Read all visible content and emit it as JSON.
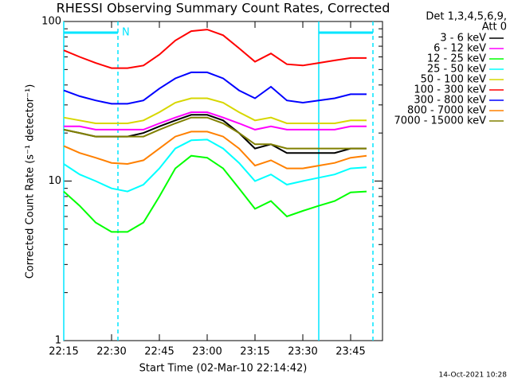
{
  "chart_data": {
    "type": "line",
    "title": "RHESSI Observing Summary Count Rates, Corrected",
    "x_label": "Start Time (02-Mar-10 22:14:42)",
    "y_label": "Corrected Count Rate (s⁻¹ detector⁻¹)",
    "legend_header": [
      "Det 1,3,4,5,6,9,",
      "Att 0"
    ],
    "footer": "14-Oct-2021 10:28",
    "log_y": true,
    "ylim": [
      1,
      100
    ],
    "yticks": [
      1,
      10,
      100
    ],
    "xlim": [
      "22:15",
      "23:55"
    ],
    "xticks": [
      "22:15",
      "22:30",
      "22:45",
      "23:00",
      "23:15",
      "23:30",
      "23:45"
    ],
    "intervals": [
      {
        "start": "22:15",
        "end": "22:32",
        "label": "N"
      },
      {
        "start": "23:35",
        "end": "23:52"
      }
    ],
    "interval_color": "#00e5ff",
    "x": [
      "22:15",
      "22:20",
      "22:25",
      "22:30",
      "22:35",
      "22:40",
      "22:45",
      "22:50",
      "22:55",
      "23:00",
      "23:05",
      "23:10",
      "23:15",
      "23:20",
      "23:25",
      "23:30",
      "23:35",
      "23:40",
      "23:45",
      "23:50"
    ],
    "series": [
      {
        "name": "3 - 6 keV",
        "color": "#000000",
        "values": [
          21,
          20,
          19,
          19,
          19,
          20,
          22,
          24,
          26,
          26,
          24,
          20,
          16,
          17,
          15,
          15,
          15,
          15,
          16,
          16
        ]
      },
      {
        "name": "6 - 12 keV",
        "color": "#ff00ff",
        "values": [
          22,
          22,
          21,
          21,
          21,
          21,
          23,
          25,
          27,
          27,
          25,
          23,
          21,
          22,
          21,
          21,
          21,
          21,
          22,
          22
        ]
      },
      {
        "name": "12 - 25 keV",
        "color": "#00ff00",
        "values": [
          8.6,
          7,
          5.5,
          4.8,
          4.8,
          5.5,
          8,
          12,
          14.4,
          14,
          12,
          9,
          6.7,
          7.5,
          6,
          6.5,
          7,
          7.5,
          8.5,
          8.6
        ]
      },
      {
        "name": "25 - 50 keV",
        "color": "#00ffff",
        "values": [
          12.8,
          11,
          10,
          9,
          8.6,
          9.5,
          12,
          16,
          18,
          18.2,
          16,
          13,
          10,
          11,
          9.5,
          10,
          10.5,
          11,
          12,
          12.2
        ]
      },
      {
        "name": "50 - 100 keV",
        "color": "#d7d700",
        "values": [
          25,
          24,
          23,
          23,
          23,
          24,
          27,
          31,
          33,
          33,
          31,
          27,
          24,
          25,
          23,
          23,
          23,
          23,
          24,
          24
        ]
      },
      {
        "name": "100 - 300 keV",
        "color": "#ff0000",
        "values": [
          66,
          60,
          55,
          51,
          51,
          53,
          62,
          76,
          87,
          89,
          82,
          68,
          56,
          63,
          54,
          53,
          55,
          57,
          59,
          59
        ]
      },
      {
        "name": "300 - 800 keV",
        "color": "#0000ff",
        "values": [
          37,
          34,
          32,
          30.5,
          30.5,
          32,
          38,
          44,
          48,
          48,
          44,
          37,
          33,
          39,
          32,
          31,
          32,
          33,
          35,
          35
        ]
      },
      {
        "name": "800 - 7000 keV",
        "color": "#ff8000",
        "values": [
          16.6,
          15,
          14,
          13,
          12.8,
          13.5,
          16,
          19,
          20.4,
          20.4,
          19,
          16,
          12.5,
          13.5,
          12,
          12,
          12.5,
          13,
          14,
          14.4
        ]
      },
      {
        "name": "7000 - 15000 keV",
        "color": "#808000",
        "values": [
          21,
          20,
          19,
          19,
          19,
          19,
          21,
          23,
          25,
          25,
          23,
          20,
          17,
          17,
          16,
          16,
          16,
          16,
          16,
          16
        ]
      }
    ]
  }
}
